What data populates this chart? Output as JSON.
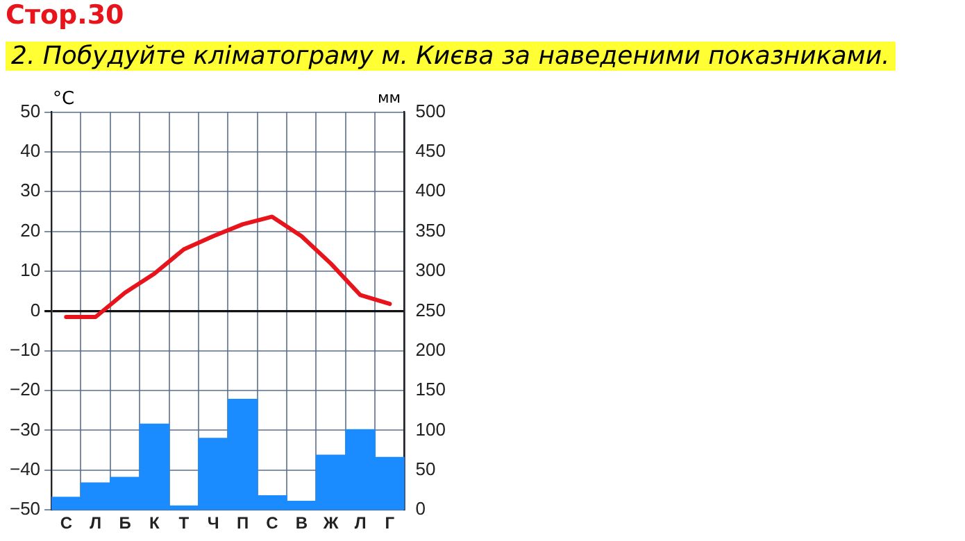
{
  "chart_data": {
    "type": "bar",
    "title": "Стор.30",
    "subtitle": "2. Побудуйте кліматограму м. Києва за наведеними показниками.",
    "ylabel": "°C",
    "y2label": "мм",
    "categories": [
      "С",
      "Л",
      "Б",
      "К",
      "Т",
      "Ч",
      "П",
      "С",
      "В",
      "Ж",
      "Л",
      "Г"
    ],
    "series": [
      {
        "axis": "y2",
        "color": "#1a8cff",
        "values": [
          16,
          34,
          41,
          108,
          5,
          90,
          139,
          18,
          11,
          69,
          101,
          66
        ]
      },
      {
        "type": "line",
        "axis": "y",
        "color": "#e8141c",
        "values": [
          -1.5,
          -1.5,
          4.6,
          9.4,
          15.5,
          18.8,
          21.8,
          23.7,
          18.8,
          11.9,
          4,
          1.8
        ]
      }
    ],
    "ylim": [
      -50,
      50
    ],
    "yticks": [
      -50,
      -40,
      -30,
      -20,
      -10,
      0,
      10,
      20,
      30,
      40,
      50
    ],
    "y2lim": [
      0,
      500
    ],
    "y2ticks": [
      0,
      50,
      100,
      150,
      200,
      250,
      300,
      350,
      400,
      450,
      500
    ],
    "grid": true,
    "legend": false,
    "marker": "none",
    "line_style": "solid"
  }
}
